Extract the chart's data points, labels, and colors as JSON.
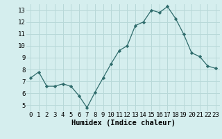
{
  "x": [
    0,
    1,
    2,
    3,
    4,
    5,
    6,
    7,
    8,
    9,
    10,
    11,
    12,
    13,
    14,
    15,
    16,
    17,
    18,
    19,
    20,
    21,
    22,
    23
  ],
  "y": [
    7.3,
    7.8,
    6.6,
    6.6,
    6.8,
    6.6,
    5.8,
    4.8,
    6.1,
    7.3,
    8.5,
    9.6,
    10.0,
    11.7,
    12.0,
    13.0,
    12.8,
    13.3,
    12.3,
    11.0,
    9.4,
    9.1,
    8.3,
    8.1
  ],
  "line_color": "#2e6b6b",
  "marker": "D",
  "marker_size": 2.2,
  "bg_color": "#d5eeee",
  "grid_color": "#b8d8d8",
  "xlabel": "Humidex (Indice chaleur)",
  "xlabel_fontsize": 7.5,
  "tick_fontsize": 6.5,
  "xlim": [
    -0.5,
    23.5
  ],
  "ylim": [
    4.5,
    13.5
  ],
  "yticks": [
    5,
    6,
    7,
    8,
    9,
    10,
    11,
    12,
    13
  ],
  "xticks": [
    0,
    1,
    2,
    3,
    4,
    5,
    6,
    7,
    8,
    9,
    10,
    11,
    12,
    13,
    14,
    15,
    16,
    17,
    18,
    19,
    20,
    21,
    22,
    23
  ]
}
